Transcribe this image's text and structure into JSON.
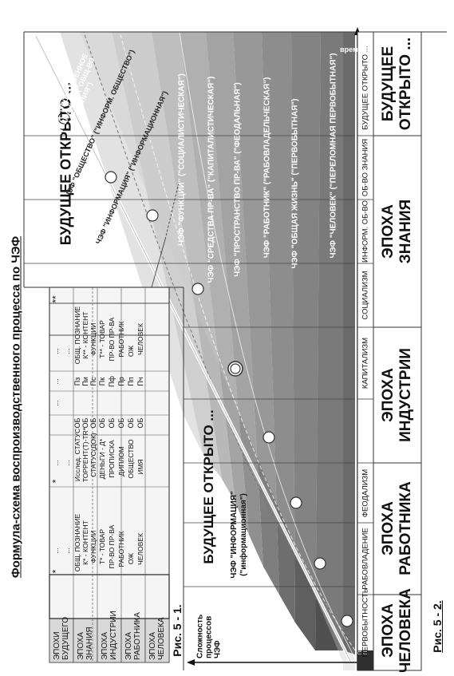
{
  "page_title": "Формула-схема воспроизводственного процесса по ЧЭФ",
  "fig1": {
    "caption": "Рис.   5 - 1.",
    "epochs": [
      "ЭПОХИ БУДУЩЕГО",
      "ЭПОХА ЗНАНИЯ",
      "ЭПОХА ИНДУСТРИИ",
      "ЭПОХА РАБОТНИКА",
      "ЭПОХА ЧЕЛОВЕКА"
    ],
    "star_single": "*",
    "star_double": "**",
    "dots": "...",
    "columns": [
      [
        "ОБЩ. ПОЗНАНИЕ",
        "К* - КОНТЕНТ",
        "ФУНКЦИИ",
        "Т* - ТОВАР",
        "ПР-ВО ПР-ВА",
        "РАБОТНИК",
        "ОЖ",
        "ЧЕЛОВЕК"
      ],
      [
        "Исслед. СТАТУС",
        "ТОРРЕНТ(Т)-TR*",
        "СТАТУС(ДОК)",
        "ДЕНЬГИ - Д*",
        "ПРОПИСКА",
        "ДИПЛОМ",
        "ОБЩЕСТВО",
        "ИМЯ"
      ],
      [
        "ОБ",
        "ОБ",
        "ОБ",
        "ОБ",
        "ОБ",
        "ОБ",
        "ОБ",
        "ОБ"
      ],
      [
        "Пз",
        "Пи",
        "Пс",
        "Пк",
        "Пф",
        "Пр",
        "Пп",
        "Пч"
      ],
      [
        "ОБЩ. ПОЗНАНИЕ",
        "К** - КОНТЕНТ",
        "ФУНКЦИИ",
        "Т** - ТОВАР",
        "ПР-ВО ПР-ВА",
        "РАБОТНИК",
        "ОЖ",
        "ЧЕЛОВЕК"
      ]
    ]
  },
  "fig2": {
    "caption": "Рис.   5 - 2.",
    "y_axis_label": "Сложность процессов ЧЭФ",
    "time_label": "время",
    "future_label": "БУДУЩЕЕ ОТКРЫТО ...",
    "info_label": "ЧЭФ \"ИНФОРМАЦИЯ\" (\"информационная\")",
    "formations": [
      "ПЕРЕЛОМНАЯ ПЕРВОБЫТНОСТЬ",
      "ПЕРВОБЫТНОСТЬ",
      "РАБОВЛАДЕНИЕ",
      "ФЕОДАЛИЗМ",
      "КАПИТАЛИЗМ",
      "СОЦИАЛИЗМ",
      "ИНФОРМ. ОБ-ВО",
      "ОБ-ВО ЗНАНИЯ",
      "БУДУЩЕЕ ОТКРЫТО ..."
    ],
    "epochs": [
      "ЭПОХА ЧЕЛОВЕКА",
      "ЭПОХА РАБОТНИКА",
      "ЭПОХА ИНДУСТРИИ",
      "ЭПОХА ЗНАНИЯ",
      "БУДУЩЕЕ ОТКРЫТО ..."
    ],
    "bands": [
      "ЧЭФ \"ОБЩЕСТВЕННОЕ ПОЗНАНИЕ\" (\"ОБЩ-ВО ЗНАНИЯ\")",
      "ЧЭФ \"ОБЩЕСТВО\" (\"ИНФОРМ. ОБЩЕСТВО\")",
      "ЧЭФ \"ИНФОРМАЦИЯ\" (\"ИНФОРМАЦИОННАЯ\")",
      "ЧЭФ \"ФУНКЦИИ\" (\"СОЦИАЛИСТИЧЕСКАЯ\")",
      "ЧЭФ \"СРЕДСТВА ПР-ВА\" (\"КАПИТАЛИСТИЧЕСКАЯ\")",
      "ЧЭФ \"ПРОСТРАНСТВО ПР-ВА\" (\"ФЕОДАЛЬНАЯ\")",
      "ЧЭФ \"РАБОТНИК\" (\"РАБОВЛАДЕЛЬЧЕСКАЯ\")",
      "ЧЭФ \"ОБЩАЯ ЖИЗНЬ\" (\"ПЕРВОБЫТНАЯ\")",
      "ЧЭФ \"ЧЕЛОВЕК\" (\"ПЕРЕЛОМНАЯ ПЕРВОБЫТНАЯ\")"
    ]
  }
}
